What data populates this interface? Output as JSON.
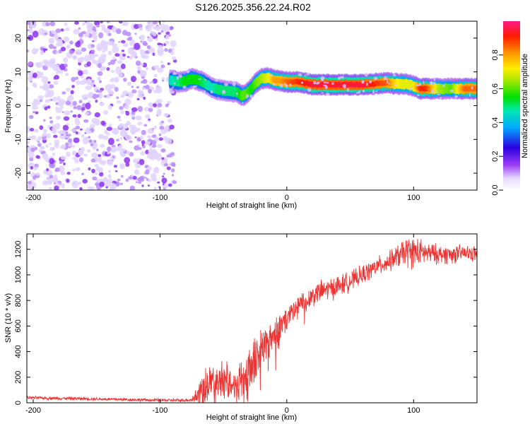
{
  "title": "S126.2025.356.22.24.R02",
  "chart_data": [
    {
      "type": "heatmap",
      "title": "S126.2025.356.22.24.R02",
      "xlabel": "Height of straight line (km)",
      "ylabel": "Frequency (Hz)",
      "xlim": [
        -205,
        150
      ],
      "ylim": [
        -25,
        25
      ],
      "xticks": [
        -200,
        -100,
        0,
        100
      ],
      "yticks": [
        -20,
        -10,
        0,
        10,
        20
      ],
      "noise_region_x": [
        -205,
        -80
      ],
      "ridge": {
        "x": [
          -92,
          -85,
          -80,
          -75,
          -70,
          -65,
          -60,
          -55,
          -50,
          -45,
          -40,
          -35,
          -32,
          -28,
          -25,
          -20,
          -15,
          -10,
          -5,
          0,
          10,
          20,
          30,
          40,
          50,
          60,
          70,
          80,
          85,
          90,
          95,
          100,
          105,
          110,
          120,
          130,
          140,
          150
        ],
        "freq": [
          7.5,
          7.0,
          7.2,
          8.0,
          7.5,
          6.8,
          5.5,
          4.8,
          4.5,
          4.2,
          4.0,
          3.0,
          3.5,
          5.0,
          6.5,
          8.0,
          8.3,
          7.5,
          7.3,
          7.0,
          7.0,
          6.2,
          6.2,
          6.2,
          6.2,
          6.2,
          6.5,
          6.8,
          6.5,
          6.4,
          6.3,
          5.8,
          5.0,
          5.0,
          5.0,
          5.0,
          5.0,
          5.0
        ],
        "amp": [
          0.45,
          0.5,
          0.55,
          0.55,
          0.55,
          0.5,
          0.45,
          0.5,
          0.5,
          0.5,
          0.5,
          0.6,
          0.6,
          0.55,
          0.6,
          0.65,
          0.7,
          0.8,
          0.8,
          0.85,
          0.9,
          0.95,
          0.95,
          0.95,
          0.95,
          0.95,
          0.9,
          0.85,
          0.75,
          0.7,
          0.7,
          0.7,
          0.9,
          0.9,
          0.65,
          0.6,
          0.85,
          0.85
        ]
      },
      "colorbar": {
        "label": "Normalized spectral amplitude",
        "ticks": [
          "0.0",
          "0.2",
          "0.4",
          "0.6",
          "0.8"
        ],
        "range": [
          0,
          1
        ]
      }
    },
    {
      "type": "line",
      "xlabel": "Height of straight line (km)",
      "ylabel": "SNR (10 * v/v)",
      "xlim": [
        -205,
        150
      ],
      "ylim": [
        0,
        1320
      ],
      "xticks": [
        -200,
        -100,
        0,
        100
      ],
      "yticks": [
        0,
        200,
        400,
        600,
        800,
        1000,
        1200
      ],
      "series": [
        {
          "name": "SNR",
          "color": "#ee3333",
          "x": [
            -205,
            -150,
            -100,
            -80,
            -75,
            -70,
            -65,
            -60,
            -55,
            -50,
            -45,
            -40,
            -35,
            -30,
            -25,
            -20,
            -15,
            -10,
            -5,
            0,
            10,
            20,
            30,
            40,
            50,
            60,
            70,
            80,
            90,
            95,
            100,
            110,
            120,
            130,
            140,
            150
          ],
          "y": [
            40,
            30,
            20,
            20,
            25,
            60,
            130,
            180,
            160,
            200,
            170,
            140,
            190,
            280,
            330,
            420,
            480,
            540,
            600,
            650,
            760,
            840,
            880,
            910,
            950,
            1000,
            1060,
            1100,
            1160,
            1180,
            1180,
            1170,
            1160,
            1160,
            1170,
            1160
          ],
          "noise": [
            10,
            10,
            10,
            10,
            15,
            80,
            120,
            120,
            100,
            120,
            100,
            120,
            150,
            180,
            170,
            150,
            130,
            120,
            110,
            100,
            80,
            70,
            70,
            70,
            60,
            60,
            60,
            60,
            80,
            100,
            100,
            70,
            60,
            60,
            50,
            50
          ]
        }
      ]
    }
  ]
}
